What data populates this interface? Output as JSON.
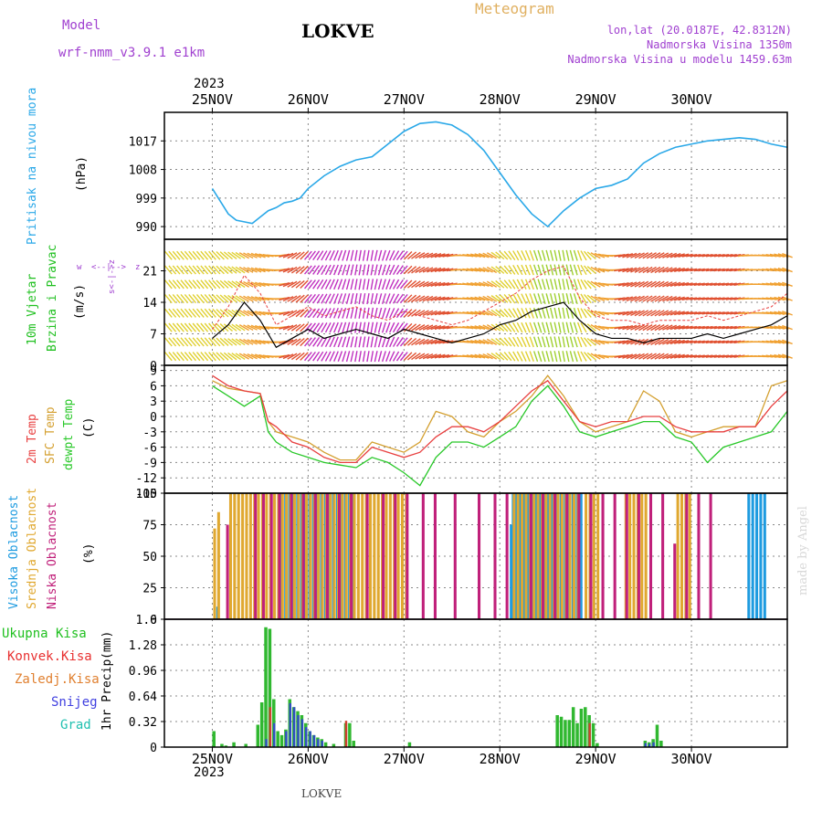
{
  "header": {
    "model_label": "Model",
    "model_name": "wrf-nmm_v3.9.1  e1km",
    "station": "LOKVE",
    "product": "Meteogram",
    "lonlat": "lon,lat (20.0187E, 42.8312N)",
    "elevation": "Nadmorska Visina 1350m",
    "model_elevation": "Nadmorska Visina u modelu 1459.63m",
    "year": "2023"
  },
  "footer": {
    "station": "LOKVE",
    "credit": "made by Angel"
  },
  "days": [
    "25NOV",
    "26NOV",
    "27NOV",
    "28NOV",
    "29NOV",
    "30NOV"
  ],
  "panel_labels": {
    "pressure": {
      "name": "Pritisak na nivou mora",
      "unit": "(hPa)"
    },
    "wind": {
      "name1": "10m Vjetar",
      "name2": "Brzina i Pravac",
      "unit": "(m/s)",
      "compass_w": "w",
      "compass": "<--|-->",
      "compass_z": "z",
      "compass_s": "s<-|->z"
    },
    "temp": {
      "t2m": "2m Temp",
      "sfc": "SFC Temp",
      "dew": "dewpt Temp",
      "unit": "(C)"
    },
    "cloud": {
      "high": "Visoka Oblacnost",
      "mid": "Srednja Oblacnost",
      "low": "Niska Oblacnost",
      "unit": "(%)"
    },
    "precip": {
      "total": "Ukupna Kisa",
      "conv": "Konvek.Kisa",
      "frz": "Zaledj.Kisa",
      "snow": "Snijeg",
      "hail": "Grad",
      "axis": "1hr Precip",
      "unit": "(mm)"
    }
  },
  "colors": {
    "pressure": "#2aa8e8",
    "t2m": "#e84040",
    "sfc": "#d4a030",
    "dew": "#28c828",
    "cloud_high": "#1e9be0",
    "cloud_mid": "#e0a830",
    "cloud_low": "#c0207a",
    "precip_total": "#30b830",
    "precip_conv": "#d04030",
    "precip_snow": "#3050c0",
    "precip_hail": "#20a0a0",
    "label_green": "#20c020",
    "label_red": "#e83030",
    "label_orange": "#e08030",
    "label_blue": "#4040e0",
    "label_teal": "#20c0b0"
  },
  "chart_data": [
    {
      "type": "line",
      "name": "pressure",
      "ylim": [
        986,
        1026
      ],
      "yticks": [
        990,
        999,
        1008,
        1017
      ],
      "x_hours": [
        0,
        2,
        4,
        6,
        8,
        10,
        12,
        14,
        16,
        18,
        20,
        22,
        24,
        28,
        32,
        36,
        40,
        44,
        48,
        52,
        56,
        60,
        64,
        68,
        72,
        76,
        80,
        84,
        88,
        92,
        96,
        100,
        104,
        108,
        112,
        116,
        120,
        124,
        128,
        132,
        136,
        140,
        144
      ],
      "values": [
        1002,
        998,
        994,
        992,
        991.5,
        991,
        993,
        995,
        996,
        997.5,
        998,
        999,
        1002,
        1006,
        1009,
        1011,
        1012,
        1016,
        1020,
        1022.5,
        1023,
        1022,
        1019,
        1014,
        1007,
        1000,
        994,
        990,
        995,
        999,
        1002,
        1003,
        1005,
        1010,
        1013,
        1015,
        1016,
        1017,
        1017.5,
        1018,
        1017.5,
        1016,
        1015
      ]
    },
    {
      "type": "line",
      "name": "wind_speed",
      "ylim": [
        0,
        28
      ],
      "yticks": [
        0,
        7,
        14,
        21
      ],
      "x_hours": [
        0,
        4,
        8,
        12,
        16,
        20,
        24,
        28,
        32,
        36,
        40,
        44,
        48,
        52,
        56,
        60,
        64,
        68,
        72,
        76,
        80,
        84,
        88,
        92,
        96,
        100,
        104,
        108,
        112,
        116,
        120,
        124,
        128,
        132,
        136,
        140,
        144
      ],
      "speed": [
        6,
        9,
        14,
        10,
        4,
        6,
        8,
        6,
        7,
        8,
        7,
        6,
        8,
        7,
        6,
        5,
        6,
        7,
        9,
        10,
        12,
        13,
        14,
        10,
        7,
        6,
        6,
        5,
        6,
        6,
        6,
        7,
        6,
        7,
        8,
        9,
        11
      ],
      "gust": [
        8,
        13,
        20,
        16,
        9,
        11,
        13,
        11,
        12,
        13,
        11,
        10,
        12,
        11,
        10,
        9,
        10,
        12,
        14,
        16,
        19,
        21,
        22,
        15,
        11,
        10,
        10,
        9,
        10,
        10,
        10,
        11,
        10,
        11,
        12,
        13,
        16
      ],
      "direction_deg": [
        220,
        230,
        240,
        250,
        270,
        300,
        320,
        330,
        340,
        350,
        350,
        340,
        320,
        300,
        290,
        280,
        260,
        250,
        230,
        210,
        200,
        195,
        190,
        200,
        240,
        270,
        290,
        300,
        300,
        290,
        280,
        280,
        280,
        280,
        270,
        260,
        250
      ]
    },
    {
      "type": "line",
      "name": "temperature",
      "ylim": [
        -15,
        10
      ],
      "yticks": [
        -15,
        -12,
        -9,
        -6,
        -3,
        0,
        3,
        6,
        9
      ],
      "x_hours": [
        0,
        4,
        8,
        12,
        14,
        16,
        20,
        24,
        28,
        32,
        36,
        40,
        44,
        48,
        52,
        56,
        60,
        64,
        68,
        72,
        76,
        80,
        84,
        88,
        92,
        96,
        100,
        104,
        108,
        112,
        116,
        120,
        124,
        128,
        132,
        136,
        140,
        144
      ],
      "t2m": [
        8,
        6,
        5,
        4.5,
        -1,
        -2,
        -5,
        -6,
        -8,
        -9,
        -9,
        -6,
        -7,
        -8,
        -7,
        -4,
        -2,
        -2,
        -3,
        -1,
        2,
        5,
        7,
        3,
        -1,
        -2,
        -1,
        -1,
        0,
        0,
        -2,
        -3,
        -3,
        -3,
        -2,
        -2,
        2,
        5
      ],
      "sfc": [
        7,
        5.5,
        5,
        4.5,
        -1,
        -3,
        -4,
        -5,
        -7,
        -8.5,
        -8.5,
        -5,
        -6,
        -7,
        -5,
        1,
        0,
        -3,
        -4,
        -1,
        1,
        4,
        8,
        4,
        -1,
        -3,
        -2,
        -1,
        5,
        3,
        -3,
        -4,
        -3,
        -2,
        -2,
        -2,
        6,
        7
      ],
      "dew": [
        6,
        4,
        2,
        4,
        -3,
        -5,
        -7,
        -8,
        -9,
        -9.5,
        -10,
        -8,
        -9,
        -11,
        -13.5,
        -8,
        -5,
        -5,
        -6,
        -4,
        -2,
        3,
        6,
        2,
        -3,
        -4,
        -3,
        -2,
        -1,
        -1,
        -4,
        -5,
        -9,
        -6,
        -5,
        -4,
        -3,
        1
      ]
    },
    {
      "type": "bar",
      "name": "cloud_cover",
      "ylim": [
        0,
        100
      ],
      "yticks": [
        0,
        25,
        50,
        75,
        100
      ],
      "bar_width_hours": 0.7,
      "high": [
        [
          1,
          10
        ],
        [
          17,
          100
        ],
        [
          18,
          100
        ],
        [
          19,
          100
        ],
        [
          20,
          100
        ],
        [
          21,
          100
        ],
        [
          22,
          100
        ],
        [
          23,
          100
        ],
        [
          24,
          100
        ],
        [
          25,
          100
        ],
        [
          26,
          100
        ],
        [
          27,
          100
        ],
        [
          28,
          100
        ],
        [
          29,
          100
        ],
        [
          30,
          100
        ],
        [
          31,
          100
        ],
        [
          32,
          100
        ],
        [
          33,
          100
        ],
        [
          34,
          100
        ],
        [
          35,
          100
        ],
        [
          74.5,
          75
        ],
        [
          75,
          100
        ],
        [
          75.5,
          100
        ],
        [
          76,
          100
        ],
        [
          76.5,
          100
        ],
        [
          77,
          100
        ],
        [
          77.5,
          100
        ],
        [
          78,
          100
        ],
        [
          78.5,
          100
        ],
        [
          79,
          100
        ],
        [
          79.5,
          100
        ],
        [
          80,
          100
        ],
        [
          80.5,
          100
        ],
        [
          81,
          100
        ],
        [
          81.5,
          100
        ],
        [
          82,
          100
        ],
        [
          82.5,
          100
        ],
        [
          83,
          100
        ],
        [
          83.5,
          100
        ],
        [
          84,
          100
        ],
        [
          84.5,
          100
        ],
        [
          85,
          100
        ],
        [
          85.5,
          100
        ],
        [
          86,
          100
        ],
        [
          87,
          100
        ],
        [
          88,
          100
        ],
        [
          89,
          100
        ],
        [
          90,
          100
        ],
        [
          91,
          100
        ],
        [
          92,
          100
        ],
        [
          134,
          100
        ],
        [
          135,
          100
        ],
        [
          136,
          100
        ],
        [
          137,
          100
        ],
        [
          138,
          100
        ]
      ],
      "mid": [
        [
          0,
          72
        ],
        [
          1,
          85
        ],
        [
          4,
          100
        ],
        [
          5,
          100
        ],
        [
          6,
          100
        ],
        [
          7,
          100
        ],
        [
          8,
          100
        ],
        [
          9,
          100
        ],
        [
          10,
          100
        ],
        [
          11,
          100
        ],
        [
          12,
          100
        ],
        [
          13,
          100
        ],
        [
          14,
          100
        ],
        [
          15,
          100
        ],
        [
          16,
          100
        ],
        [
          17,
          100
        ],
        [
          18,
          100
        ],
        [
          19,
          100
        ],
        [
          20,
          100
        ],
        [
          21,
          100
        ],
        [
          22,
          100
        ],
        [
          23,
          100
        ],
        [
          24,
          100
        ],
        [
          25,
          100
        ],
        [
          26,
          100
        ],
        [
          27,
          100
        ],
        [
          28,
          100
        ],
        [
          29,
          100
        ],
        [
          30,
          100
        ],
        [
          31,
          100
        ],
        [
          32,
          100
        ],
        [
          33,
          100
        ],
        [
          34,
          100
        ],
        [
          35,
          100
        ],
        [
          36,
          100
        ],
        [
          37,
          100
        ],
        [
          38,
          100
        ],
        [
          39,
          100
        ],
        [
          40,
          100
        ],
        [
          41,
          100
        ],
        [
          42,
          100
        ],
        [
          43,
          100
        ],
        [
          44,
          100
        ],
        [
          45,
          100
        ],
        [
          46,
          100
        ],
        [
          47,
          100
        ],
        [
          48,
          100
        ],
        [
          75,
          100
        ],
        [
          76,
          100
        ],
        [
          77,
          100
        ],
        [
          78,
          100
        ],
        [
          79,
          100
        ],
        [
          80,
          100
        ],
        [
          81,
          100
        ],
        [
          82,
          100
        ],
        [
          83,
          100
        ],
        [
          84,
          100
        ],
        [
          85,
          100
        ],
        [
          86,
          100
        ],
        [
          87,
          100
        ],
        [
          88,
          100
        ],
        [
          89,
          100
        ],
        [
          90,
          100
        ],
        [
          91,
          100
        ],
        [
          93,
          100
        ],
        [
          94,
          100
        ],
        [
          95,
          100
        ],
        [
          96,
          100
        ],
        [
          103,
          100
        ],
        [
          104,
          100
        ],
        [
          105,
          100
        ],
        [
          106,
          100
        ],
        [
          107,
          100
        ],
        [
          108,
          100
        ],
        [
          116,
          100
        ],
        [
          117,
          100
        ],
        [
          118,
          100
        ],
        [
          119,
          100
        ]
      ],
      "low": [
        [
          3,
          75
        ],
        [
          10,
          100
        ],
        [
          12,
          100
        ],
        [
          14,
          100
        ],
        [
          16,
          100
        ],
        [
          19,
          100
        ],
        [
          22,
          100
        ],
        [
          25,
          100
        ],
        [
          28,
          100
        ],
        [
          31,
          100
        ],
        [
          34,
          100
        ],
        [
          38,
          100
        ],
        [
          42,
          100
        ],
        [
          45,
          100
        ],
        [
          48,
          100
        ],
        [
          52,
          100
        ],
        [
          55,
          100
        ],
        [
          60,
          100
        ],
        [
          66,
          100
        ],
        [
          70,
          100
        ],
        [
          73,
          100
        ],
        [
          79,
          100
        ],
        [
          82,
          100
        ],
        [
          85,
          100
        ],
        [
          88,
          100
        ],
        [
          91,
          100
        ],
        [
          94,
          100
        ],
        [
          97,
          100
        ],
        [
          100,
          100
        ],
        [
          103,
          100
        ],
        [
          106,
          100
        ],
        [
          109,
          100
        ],
        [
          112,
          100
        ],
        [
          115,
          60
        ],
        [
          118,
          100
        ],
        [
          121,
          100
        ],
        [
          124,
          100
        ]
      ]
    },
    {
      "type": "bar",
      "name": "precip_1hr",
      "ylim": [
        0,
        1.6
      ],
      "yticks": [
        0,
        0.32,
        0.64,
        0.96,
        1.28,
        1.6
      ],
      "bar_width_hours": 0.7,
      "total": [
        [
          0,
          0.2
        ],
        [
          2,
          0.04
        ],
        [
          3,
          0.02
        ],
        [
          5,
          0.06
        ],
        [
          8,
          0.04
        ],
        [
          11,
          0.28
        ],
        [
          12,
          0.56
        ],
        [
          13,
          1.5
        ],
        [
          14,
          1.48
        ],
        [
          15,
          0.6
        ],
        [
          16,
          0.2
        ],
        [
          17,
          0.15
        ],
        [
          18,
          0.22
        ],
        [
          19,
          0.6
        ],
        [
          20,
          0.5
        ],
        [
          21,
          0.45
        ],
        [
          22,
          0.4
        ],
        [
          23,
          0.3
        ],
        [
          24,
          0.2
        ],
        [
          25,
          0.15
        ],
        [
          26,
          0.12
        ],
        [
          27,
          0.1
        ],
        [
          28,
          0.06
        ],
        [
          30,
          0.04
        ],
        [
          33,
          0.3
        ],
        [
          34,
          0.3
        ],
        [
          35,
          0.08
        ],
        [
          49,
          0.06
        ],
        [
          86,
          0.4
        ],
        [
          87,
          0.38
        ],
        [
          88,
          0.34
        ],
        [
          89,
          0.34
        ],
        [
          90,
          0.5
        ],
        [
          91,
          0.3
        ],
        [
          92,
          0.48
        ],
        [
          93,
          0.5
        ],
        [
          94,
          0.4
        ],
        [
          95,
          0.3
        ],
        [
          96,
          0.05
        ],
        [
          108,
          0.08
        ],
        [
          109,
          0.06
        ],
        [
          110,
          0.1
        ],
        [
          111,
          0.28
        ],
        [
          112,
          0.08
        ]
      ],
      "conv": [
        [
          14,
          0.5
        ],
        [
          33,
          0.33
        ],
        [
          94,
          0.3
        ]
      ],
      "snow": [
        [
          13,
          0.1
        ],
        [
          15,
          0.3
        ],
        [
          18,
          0.2
        ],
        [
          19,
          0.55
        ],
        [
          20,
          0.5
        ],
        [
          21,
          0.4
        ],
        [
          22,
          0.35
        ],
        [
          23,
          0.25
        ],
        [
          24,
          0.2
        ],
        [
          25,
          0.15
        ],
        [
          26,
          0.1
        ],
        [
          27,
          0.08
        ],
        [
          108,
          0.05
        ],
        [
          109,
          0.04
        ],
        [
          110,
          0.06
        ]
      ]
    }
  ]
}
